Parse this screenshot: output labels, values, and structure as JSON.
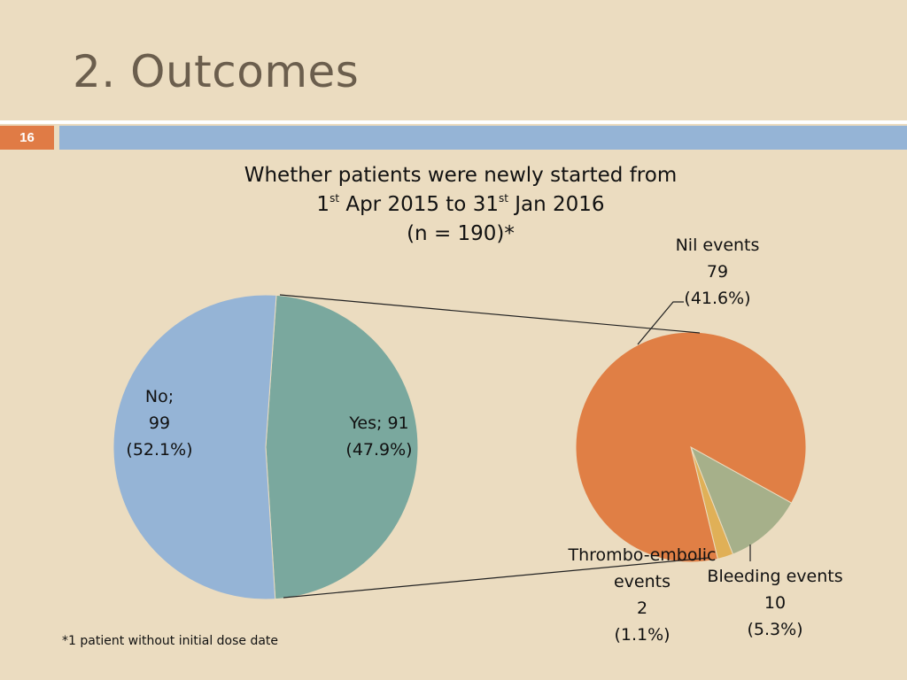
{
  "slide": {
    "title": "2. Outcomes",
    "number": "16",
    "footnote": "*1 patient without initial dose date"
  },
  "colors": {
    "background": "#ebdcc0",
    "title": "#6b5e4d",
    "number_box": "#e07b45",
    "band": "#95b4d6",
    "no": "#95b4d6",
    "yes": "#7aa89e",
    "nil": "#e07f45",
    "bleeding": "#a6b08a",
    "thrombo": "#e0b057"
  },
  "chart_data": [
    {
      "type": "pie",
      "title": {
        "line1": "Whether patients were newly started from",
        "d1": "1",
        "sup1": "st",
        "mid": " Apr 2015 to 31",
        "sup2": "st",
        "end": " Jan 2016",
        "line3": "(n = 190)*"
      },
      "slices": [
        {
          "label": "No;",
          "count": "99",
          "percent": "(52.1%)",
          "value": 99,
          "share": 52.1,
          "color": "#95b4d6"
        },
        {
          "label": "Yes; 91",
          "percent": "(47.9%)",
          "value": 91,
          "share": 47.9,
          "color": "#7aa89e"
        }
      ]
    },
    {
      "type": "pie",
      "breakdown_of": "Yes",
      "slices": [
        {
          "label": "Nil events",
          "count": "79",
          "percent": "(41.6%)",
          "value": 79,
          "share": 41.6,
          "color": "#e07f45"
        },
        {
          "label": "Bleeding events",
          "count": "10",
          "percent": "(5.3%)",
          "value": 10,
          "share": 5.3,
          "color": "#a6b08a"
        },
        {
          "label_line1": "Thrombo-embolic",
          "label_line2": "events",
          "count": "2",
          "percent": "(1.1%)",
          "value": 2,
          "share": 1.1,
          "color": "#e0b057"
        }
      ]
    }
  ]
}
